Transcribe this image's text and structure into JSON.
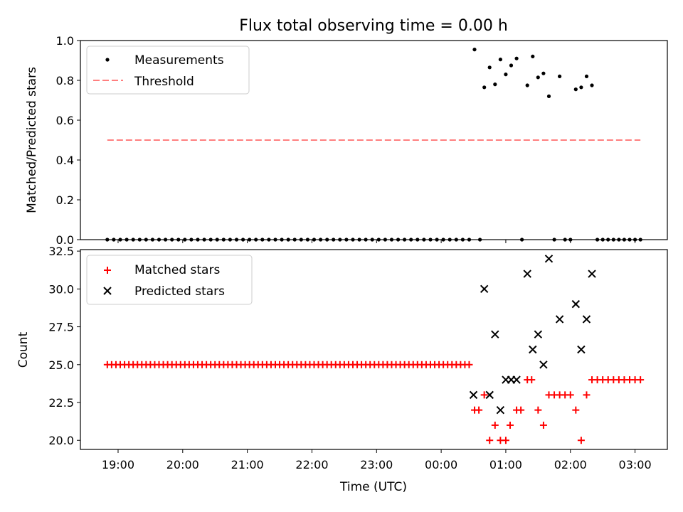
{
  "chart_data": [
    {
      "type": "scatter",
      "title": "Flux total observing time = 0.00 h",
      "ylabel": "Matched/Predicted stars",
      "xlabel": "",
      "xlim": [
        "18:25",
        "03:30"
      ],
      "ylim": [
        0,
        1.0
      ],
      "yticks": [
        0.0,
        0.2,
        0.4,
        0.6,
        0.8,
        1.0
      ],
      "ytick_labels": [
        "0.0",
        "0.2",
        "0.4",
        "0.6",
        "0.8",
        "1.0"
      ],
      "legend_position": "upper-left",
      "series": [
        {
          "name": "Measurements",
          "marker": "dot",
          "color": "#000000",
          "points": [
            [
              "18:50",
              0
            ],
            [
              "18:56",
              0
            ],
            [
              "19:02",
              0
            ],
            [
              "19:08",
              0
            ],
            [
              "19:14",
              0
            ],
            [
              "19:20",
              0
            ],
            [
              "19:26",
              0
            ],
            [
              "19:32",
              0
            ],
            [
              "19:38",
              0
            ],
            [
              "19:44",
              0
            ],
            [
              "19:50",
              0
            ],
            [
              "19:56",
              0
            ],
            [
              "20:02",
              0
            ],
            [
              "20:08",
              0
            ],
            [
              "20:14",
              0
            ],
            [
              "20:20",
              0
            ],
            [
              "20:26",
              0
            ],
            [
              "20:32",
              0
            ],
            [
              "20:38",
              0
            ],
            [
              "20:44",
              0
            ],
            [
              "20:50",
              0
            ],
            [
              "20:56",
              0
            ],
            [
              "21:02",
              0
            ],
            [
              "21:08",
              0
            ],
            [
              "21:14",
              0
            ],
            [
              "21:20",
              0
            ],
            [
              "21:26",
              0
            ],
            [
              "21:32",
              0
            ],
            [
              "21:38",
              0
            ],
            [
              "21:44",
              0
            ],
            [
              "21:50",
              0
            ],
            [
              "21:56",
              0
            ],
            [
              "22:02",
              0
            ],
            [
              "22:08",
              0
            ],
            [
              "22:14",
              0
            ],
            [
              "22:20",
              0
            ],
            [
              "22:26",
              0
            ],
            [
              "22:32",
              0
            ],
            [
              "22:38",
              0
            ],
            [
              "22:44",
              0
            ],
            [
              "22:50",
              0
            ],
            [
              "22:56",
              0
            ],
            [
              "23:02",
              0
            ],
            [
              "23:08",
              0
            ],
            [
              "23:14",
              0
            ],
            [
              "23:20",
              0
            ],
            [
              "23:26",
              0
            ],
            [
              "23:32",
              0
            ],
            [
              "23:38",
              0
            ],
            [
              "23:44",
              0
            ],
            [
              "23:50",
              0
            ],
            [
              "23:56",
              0
            ],
            [
              "00:02",
              0
            ],
            [
              "00:08",
              0
            ],
            [
              "00:14",
              0
            ],
            [
              "00:20",
              0
            ],
            [
              "00:26",
              0
            ],
            [
              "00:31",
              0.955
            ],
            [
              "00:36",
              0
            ],
            [
              "00:40",
              0.765
            ],
            [
              "00:45",
              0.865
            ],
            [
              "00:50",
              0.78
            ],
            [
              "00:55",
              0.905
            ],
            [
              "01:00",
              0.83
            ],
            [
              "01:05",
              0.875
            ],
            [
              "01:10",
              0.91
            ],
            [
              "01:15",
              0
            ],
            [
              "01:20",
              0.775
            ],
            [
              "01:25",
              0.92
            ],
            [
              "01:30",
              0.815
            ],
            [
              "01:35",
              0.835
            ],
            [
              "01:40",
              0.72
            ],
            [
              "01:45",
              0
            ],
            [
              "01:50",
              0.82
            ],
            [
              "01:55",
              0
            ],
            [
              "02:00",
              0
            ],
            [
              "02:05",
              0.755
            ],
            [
              "02:10",
              0.765
            ],
            [
              "02:15",
              0.82
            ],
            [
              "02:20",
              0.775
            ],
            [
              "02:25",
              0
            ],
            [
              "02:30",
              0
            ],
            [
              "02:35",
              0
            ],
            [
              "02:40",
              0
            ],
            [
              "02:45",
              0
            ],
            [
              "02:50",
              0
            ],
            [
              "02:55",
              0
            ],
            [
              "03:00",
              0
            ],
            [
              "03:05",
              0
            ]
          ]
        },
        {
          "name": "Threshold",
          "line_style": "dashed",
          "color": "#ff7f7f",
          "points": [
            [
              "18:50",
              0.5
            ],
            [
              "03:05",
              0.5
            ]
          ]
        }
      ]
    },
    {
      "type": "scatter",
      "title": "",
      "ylabel": "Count",
      "xlabel": "Time (UTC)",
      "xlim": [
        "18:25",
        "03:30"
      ],
      "ylim": [
        19.4,
        32.6
      ],
      "yticks": [
        20.0,
        22.5,
        25.0,
        27.5,
        30.0,
        32.5
      ],
      "ytick_labels": [
        "20.0",
        "22.5",
        "25.0",
        "27.5",
        "30.0",
        "32.5"
      ],
      "xticks": [
        "19:00",
        "20:00",
        "21:00",
        "22:00",
        "23:00",
        "00:00",
        "01:00",
        "02:00",
        "03:00"
      ],
      "legend_position": "upper-left",
      "series": [
        {
          "name": "Matched stars",
          "marker": "plus",
          "color": "#ff0000",
          "points": [
            [
              "18:50",
              25
            ],
            [
              "18:54",
              25
            ],
            [
              "18:58",
              25
            ],
            [
              "19:02",
              25
            ],
            [
              "19:06",
              25
            ],
            [
              "19:10",
              25
            ],
            [
              "19:14",
              25
            ],
            [
              "19:18",
              25
            ],
            [
              "19:22",
              25
            ],
            [
              "19:26",
              25
            ],
            [
              "19:30",
              25
            ],
            [
              "19:34",
              25
            ],
            [
              "19:38",
              25
            ],
            [
              "19:42",
              25
            ],
            [
              "19:46",
              25
            ],
            [
              "19:50",
              25
            ],
            [
              "19:54",
              25
            ],
            [
              "19:58",
              25
            ],
            [
              "20:02",
              25
            ],
            [
              "20:06",
              25
            ],
            [
              "20:10",
              25
            ],
            [
              "20:14",
              25
            ],
            [
              "20:18",
              25
            ],
            [
              "20:22",
              25
            ],
            [
              "20:26",
              25
            ],
            [
              "20:30",
              25
            ],
            [
              "20:34",
              25
            ],
            [
              "20:38",
              25
            ],
            [
              "20:42",
              25
            ],
            [
              "20:46",
              25
            ],
            [
              "20:50",
              25
            ],
            [
              "20:54",
              25
            ],
            [
              "20:58",
              25
            ],
            [
              "21:02",
              25
            ],
            [
              "21:06",
              25
            ],
            [
              "21:10",
              25
            ],
            [
              "21:14",
              25
            ],
            [
              "21:18",
              25
            ],
            [
              "21:22",
              25
            ],
            [
              "21:26",
              25
            ],
            [
              "21:30",
              25
            ],
            [
              "21:34",
              25
            ],
            [
              "21:38",
              25
            ],
            [
              "21:42",
              25
            ],
            [
              "21:46",
              25
            ],
            [
              "21:50",
              25
            ],
            [
              "21:54",
              25
            ],
            [
              "21:58",
              25
            ],
            [
              "22:02",
              25
            ],
            [
              "22:06",
              25
            ],
            [
              "22:10",
              25
            ],
            [
              "22:14",
              25
            ],
            [
              "22:18",
              25
            ],
            [
              "22:22",
              25
            ],
            [
              "22:26",
              25
            ],
            [
              "22:30",
              25
            ],
            [
              "22:34",
              25
            ],
            [
              "22:38",
              25
            ],
            [
              "22:42",
              25
            ],
            [
              "22:46",
              25
            ],
            [
              "22:50",
              25
            ],
            [
              "22:54",
              25
            ],
            [
              "22:58",
              25
            ],
            [
              "23:02",
              25
            ],
            [
              "23:06",
              25
            ],
            [
              "23:10",
              25
            ],
            [
              "23:14",
              25
            ],
            [
              "23:18",
              25
            ],
            [
              "23:22",
              25
            ],
            [
              "23:26",
              25
            ],
            [
              "23:30",
              25
            ],
            [
              "23:34",
              25
            ],
            [
              "23:38",
              25
            ],
            [
              "23:42",
              25
            ],
            [
              "23:46",
              25
            ],
            [
              "23:50",
              25
            ],
            [
              "23:54",
              25
            ],
            [
              "23:58",
              25
            ],
            [
              "00:02",
              25
            ],
            [
              "00:06",
              25
            ],
            [
              "00:10",
              25
            ],
            [
              "00:14",
              25
            ],
            [
              "00:18",
              25
            ],
            [
              "00:22",
              25
            ],
            [
              "00:26",
              25
            ],
            [
              "00:31",
              22
            ],
            [
              "00:35",
              22
            ],
            [
              "00:40",
              23
            ],
            [
              "00:45",
              20
            ],
            [
              "00:50",
              21
            ],
            [
              "00:55",
              20
            ],
            [
              "01:00",
              20
            ],
            [
              "01:04",
              21
            ],
            [
              "01:10",
              22
            ],
            [
              "01:14",
              22
            ],
            [
              "01:20",
              24
            ],
            [
              "01:24",
              24
            ],
            [
              "01:30",
              22
            ],
            [
              "01:35",
              21
            ],
            [
              "01:40",
              23
            ],
            [
              "01:45",
              23
            ],
            [
              "01:50",
              23
            ],
            [
              "01:55",
              23
            ],
            [
              "02:00",
              23
            ],
            [
              "02:05",
              22
            ],
            [
              "02:10",
              20
            ],
            [
              "02:15",
              23
            ],
            [
              "02:20",
              24
            ],
            [
              "02:25",
              24
            ],
            [
              "02:30",
              24
            ],
            [
              "02:35",
              24
            ],
            [
              "02:40",
              24
            ],
            [
              "02:45",
              24
            ],
            [
              "02:50",
              24
            ],
            [
              "02:55",
              24
            ],
            [
              "03:00",
              24
            ],
            [
              "03:05",
              24
            ]
          ]
        },
        {
          "name": "Predicted stars",
          "marker": "x",
          "color": "#000000",
          "points": [
            [
              "00:30",
              23
            ],
            [
              "00:40",
              30
            ],
            [
              "00:45",
              23
            ],
            [
              "00:50",
              27
            ],
            [
              "00:55",
              22
            ],
            [
              "01:00",
              24
            ],
            [
              "01:05",
              24
            ],
            [
              "01:10",
              24
            ],
            [
              "01:20",
              31
            ],
            [
              "01:25",
              26
            ],
            [
              "01:30",
              27
            ],
            [
              "01:35",
              25
            ],
            [
              "01:40",
              32
            ],
            [
              "01:50",
              28
            ],
            [
              "02:05",
              29
            ],
            [
              "02:10",
              26
            ],
            [
              "02:15",
              28
            ],
            [
              "02:20",
              31
            ]
          ]
        }
      ]
    }
  ]
}
